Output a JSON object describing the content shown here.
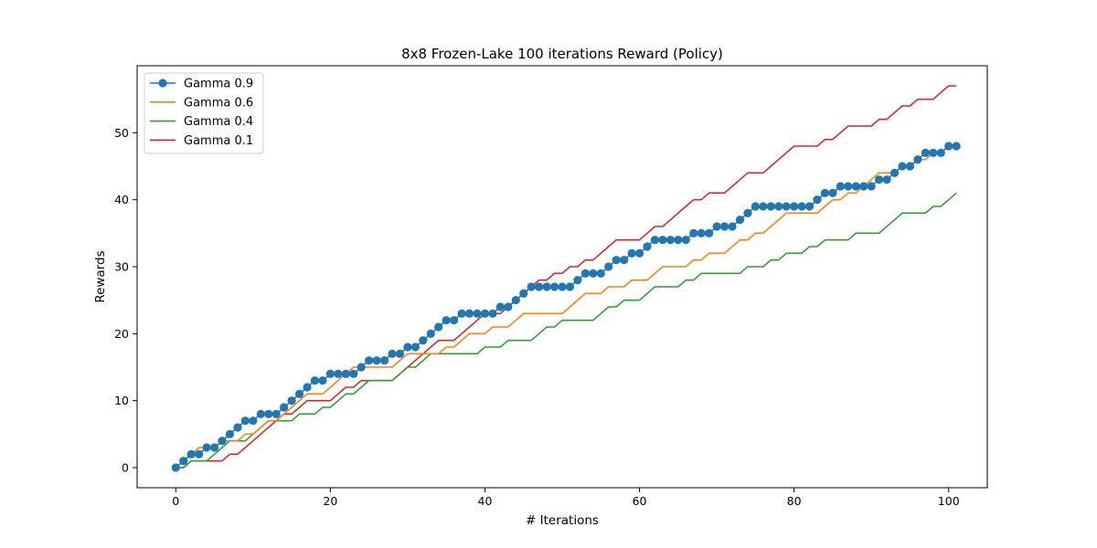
{
  "chart_data": {
    "type": "line",
    "title": "8x8 Frozen-Lake 100 iterations  Reward (Policy)",
    "xlabel": "# Iterations",
    "ylabel": "Rewards",
    "xlim": [
      -5,
      105
    ],
    "ylim": [
      -3,
      60
    ],
    "xticks": [
      0,
      20,
      40,
      60,
      80,
      100
    ],
    "yticks": [
      0,
      10,
      20,
      30,
      40,
      50
    ],
    "grid": false,
    "legend_position": "top-left",
    "series": [
      {
        "name": "Gamma 0.9",
        "color": "#1f77b4",
        "marker": "circle",
        "values": [
          0,
          1,
          2,
          2,
          3,
          3,
          4,
          5,
          6,
          7,
          7,
          8,
          8,
          8,
          9,
          10,
          11,
          12,
          13,
          13,
          14,
          14,
          14,
          14,
          15,
          16,
          16,
          16,
          17,
          17,
          18,
          18,
          19,
          20,
          21,
          22,
          22,
          23,
          23,
          23,
          23,
          23,
          24,
          24,
          25,
          26,
          27,
          27,
          27,
          27,
          27,
          27,
          28,
          29,
          29,
          29,
          30,
          31,
          31,
          32,
          32,
          33,
          34,
          34,
          34,
          34,
          34,
          35,
          35,
          35,
          36,
          36,
          36,
          37,
          38,
          39,
          39,
          39,
          39,
          39,
          39,
          39,
          39,
          40,
          41,
          41,
          42,
          42,
          42,
          42,
          42,
          43,
          43,
          44,
          45,
          45,
          46,
          47,
          47,
          47,
          48,
          48
        ]
      },
      {
        "name": "Gamma 0.6",
        "color": "#ff7f0e",
        "marker": "none",
        "values": [
          0,
          1,
          2,
          3,
          3,
          3,
          4,
          4,
          4,
          5,
          5,
          6,
          7,
          7,
          8,
          9,
          10,
          11,
          11,
          11,
          12,
          13,
          14,
          15,
          15,
          15,
          15,
          15,
          15,
          16,
          17,
          17,
          17,
          17,
          17,
          18,
          18,
          19,
          20,
          20,
          20,
          21,
          21,
          21,
          22,
          23,
          23,
          23,
          23,
          23,
          23,
          24,
          25,
          26,
          26,
          26,
          27,
          27,
          27,
          28,
          28,
          28,
          29,
          30,
          30,
          30,
          30,
          31,
          31,
          32,
          32,
          32,
          33,
          34,
          34,
          35,
          35,
          36,
          37,
          38,
          38,
          38,
          38,
          38,
          39,
          40,
          40,
          41,
          41,
          42,
          43,
          44,
          44,
          44,
          45,
          45,
          46,
          46,
          47,
          47,
          48
        ]
      },
      {
        "name": "Gamma 0.4",
        "color": "#2ca02c",
        "marker": "none",
        "values": [
          0,
          0,
          1,
          1,
          1,
          2,
          3,
          4,
          4,
          4,
          5,
          6,
          7,
          7,
          7,
          7,
          8,
          8,
          8,
          9,
          9,
          10,
          11,
          11,
          12,
          13,
          13,
          13,
          13,
          14,
          15,
          15,
          16,
          17,
          17,
          17,
          17,
          17,
          17,
          17,
          18,
          18,
          18,
          19,
          19,
          19,
          19,
          20,
          21,
          21,
          22,
          22,
          22,
          22,
          22,
          23,
          24,
          24,
          25,
          25,
          25,
          26,
          27,
          27,
          27,
          27,
          28,
          28,
          29,
          29,
          29,
          29,
          29,
          29,
          30,
          30,
          30,
          31,
          31,
          32,
          32,
          32,
          33,
          33,
          34,
          34,
          34,
          34,
          35,
          35,
          35,
          35,
          36,
          37,
          38,
          38,
          38,
          38,
          39,
          39,
          40,
          41
        ]
      },
      {
        "name": "Gamma 0.1",
        "color": "#d62728",
        "marker": "none",
        "values": [
          0,
          0,
          1,
          1,
          1,
          1,
          1,
          2,
          2,
          3,
          4,
          5,
          6,
          7,
          8,
          8,
          9,
          10,
          10,
          10,
          10,
          11,
          12,
          12,
          13,
          13,
          13,
          13,
          13,
          14,
          15,
          16,
          17,
          18,
          19,
          19,
          19,
          20,
          21,
          22,
          23,
          23,
          23,
          24,
          25,
          26,
          27,
          28,
          28,
          29,
          29,
          30,
          30,
          31,
          31,
          32,
          33,
          34,
          34,
          34,
          34,
          35,
          36,
          36,
          37,
          38,
          39,
          40,
          40,
          41,
          41,
          41,
          42,
          43,
          44,
          44,
          44,
          45,
          46,
          47,
          48,
          48,
          48,
          48,
          49,
          49,
          50,
          51,
          51,
          51,
          51,
          52,
          52,
          53,
          54,
          54,
          55,
          55,
          55,
          56,
          57,
          57
        ]
      }
    ]
  }
}
